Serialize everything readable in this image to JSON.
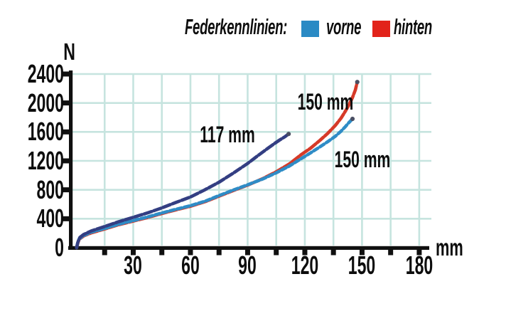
{
  "legend": {
    "title": "Federkennlinien:",
    "items": [
      {
        "label": "vorne",
        "color": "#2a8ac4"
      },
      {
        "label": "hinten",
        "color": "#e2231a"
      }
    ]
  },
  "chart_data": {
    "type": "line",
    "title": "Federkennlinien",
    "xlabel": "mm",
    "ylabel": "N",
    "xlim": [
      0,
      186
    ],
    "ylim": [
      0,
      2400
    ],
    "x_tick_labels": [
      30,
      60,
      90,
      120,
      150,
      180
    ],
    "x_minor_tick_step": 15,
    "y_tick_labels": [
      0,
      400,
      800,
      1200,
      1600,
      2000,
      2400
    ],
    "grid": true,
    "grid_color": "#c6e4df",
    "axis_color": "#101010",
    "legend_position": "top",
    "series": [
      {
        "name": "hinten (150 mm)",
        "color": "#d63a28",
        "dash": "12 2.5",
        "end_cap": true,
        "points": [
          [
            0.3,
            0
          ],
          [
            0.9,
            60
          ],
          [
            1.6,
            115
          ],
          [
            4,
            162
          ],
          [
            8,
            206
          ],
          [
            15,
            258
          ],
          [
            22,
            315
          ],
          [
            30,
            368
          ],
          [
            38,
            420
          ],
          [
            45,
            472
          ],
          [
            52,
            520
          ],
          [
            60,
            572
          ],
          [
            68,
            638
          ],
          [
            75,
            712
          ],
          [
            82,
            785
          ],
          [
            90,
            865
          ],
          [
            98,
            955
          ],
          [
            105,
            1050
          ],
          [
            112,
            1160
          ],
          [
            118,
            1285
          ],
          [
            123,
            1375
          ],
          [
            128,
            1485
          ],
          [
            132,
            1580
          ],
          [
            136,
            1690
          ],
          [
            139,
            1790
          ],
          [
            141,
            1875
          ],
          [
            143,
            1965
          ],
          [
            145,
            2075
          ],
          [
            146.5,
            2180
          ],
          [
            147.5,
            2290
          ]
        ]
      },
      {
        "name": "vorne (150 mm)",
        "color": "#2f8cc6",
        "dash": "7 3.5",
        "end_cap": true,
        "points": [
          [
            0.3,
            0
          ],
          [
            0.9,
            70
          ],
          [
            1.6,
            122
          ],
          [
            4,
            168
          ],
          [
            8,
            215
          ],
          [
            15,
            265
          ],
          [
            22,
            322
          ],
          [
            30,
            375
          ],
          [
            38,
            428
          ],
          [
            45,
            480
          ],
          [
            52,
            528
          ],
          [
            60,
            580
          ],
          [
            68,
            645
          ],
          [
            75,
            720
          ],
          [
            82,
            792
          ],
          [
            90,
            870
          ],
          [
            98,
            950
          ],
          [
            105,
            1035
          ],
          [
            112,
            1130
          ],
          [
            118,
            1230
          ],
          [
            123,
            1310
          ],
          [
            128,
            1395
          ],
          [
            132,
            1465
          ],
          [
            136,
            1540
          ],
          [
            139,
            1610
          ],
          [
            141,
            1665
          ],
          [
            143,
            1725
          ],
          [
            145,
            1780
          ]
        ]
      },
      {
        "name": "117 mm",
        "color": "#333e82",
        "dash": "11 3",
        "end_cap": true,
        "points": [
          [
            0.3,
            0
          ],
          [
            1,
            80
          ],
          [
            2,
            142
          ],
          [
            4,
            182
          ],
          [
            8,
            232
          ],
          [
            15,
            292
          ],
          [
            22,
            356
          ],
          [
            30,
            420
          ],
          [
            38,
            485
          ],
          [
            45,
            550
          ],
          [
            52,
            622
          ],
          [
            60,
            700
          ],
          [
            67,
            792
          ],
          [
            75,
            905
          ],
          [
            82,
            1022
          ],
          [
            90,
            1165
          ],
          [
            95,
            1265
          ],
          [
            100,
            1362
          ],
          [
            104,
            1438
          ],
          [
            107,
            1492
          ],
          [
            109.5,
            1532
          ],
          [
            111.5,
            1572
          ]
        ]
      }
    ],
    "annotations": [
      {
        "text": "117 mm",
        "mm": 79.4,
        "n": 1560
      },
      {
        "text": "150 mm",
        "mm": 130.8,
        "n": 2015
      },
      {
        "text": "150 mm",
        "mm": 150.2,
        "n": 1220
      }
    ]
  }
}
